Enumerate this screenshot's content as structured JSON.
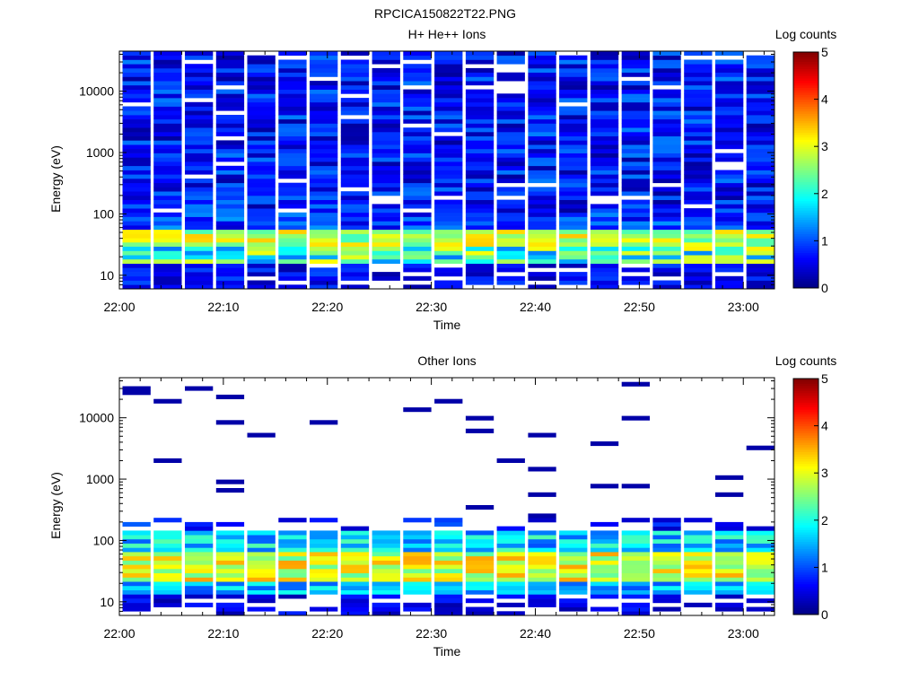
{
  "title": "RPCICA150822T22.PNG",
  "chart_data": [
    {
      "type": "heatmap",
      "title": "H+ He++ Ions",
      "xlabel": "Time",
      "ylabel": "Energy (eV)",
      "y_scale": "log",
      "y_ticks": [
        "10",
        "100",
        "1000",
        "10000"
      ],
      "x_ticks": [
        "22:00",
        "22:10",
        "22:20",
        "22:30",
        "22:40",
        "22:50",
        "23:00"
      ],
      "xlim": [
        "22:00",
        "23:03"
      ],
      "ylim": [
        6,
        45000
      ],
      "colorbar": {
        "label": "Log counts",
        "ticks": [
          "0",
          "1",
          "2",
          "3",
          "4",
          "5"
        ],
        "range": [
          0,
          5
        ]
      },
      "time_bins": [
        "22:00",
        "22:03",
        "22:06",
        "22:09",
        "22:12",
        "22:15",
        "22:18",
        "22:21",
        "22:24",
        "22:27",
        "22:30",
        "22:33",
        "22:36",
        "22:39",
        "22:42",
        "22:45",
        "22:48",
        "22:51",
        "22:54",
        "22:57",
        "23:00"
      ],
      "spectrum_summary": "Peak 30-50 eV at log counts 2.5-3.2; low fluxes 0.2-1.2 above 100 eV"
    },
    {
      "type": "heatmap",
      "title": "Other Ions",
      "xlabel": "Time",
      "ylabel": "Energy (eV)",
      "y_scale": "log",
      "y_ticks": [
        "10",
        "100",
        "1000",
        "10000"
      ],
      "x_ticks": [
        "22:00",
        "22:10",
        "22:20",
        "22:30",
        "22:40",
        "22:50",
        "23:00"
      ],
      "xlim": [
        "22:00",
        "23:03"
      ],
      "ylim": [
        6,
        45000
      ],
      "colorbar": {
        "label": "Log counts",
        "ticks": [
          "0",
          "1",
          "2",
          "3",
          "4",
          "5"
        ],
        "range": [
          0,
          5
        ]
      },
      "time_bins": [
        "22:00",
        "22:03",
        "22:06",
        "22:09",
        "22:12",
        "22:15",
        "22:18",
        "22:21",
        "22:24",
        "22:27",
        "22:30",
        "22:33",
        "22:36",
        "22:39",
        "22:42",
        "22:45",
        "22:48",
        "22:51",
        "22:54",
        "22:57",
        "23:00"
      ],
      "spectrum_summary": "Peak 25-60 eV at log counts 2.8-3.6; sparse single counts up to 30000 eV"
    }
  ]
}
